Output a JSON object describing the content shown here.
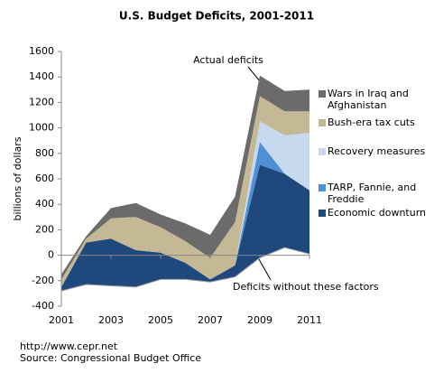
{
  "chart_data": {
    "type": "stacked-area",
    "title": "U.S. Budget Deficits, 2001-2011",
    "y_label": "billions of dollars",
    "annotation": "Actual deficits",
    "x": [
      2001,
      2002,
      2003,
      2004,
      2005,
      2006,
      2007,
      2008,
      2009,
      2010,
      2011
    ],
    "xlim": [
      2001,
      2011
    ],
    "xticks": [
      2001,
      2003,
      2005,
      2007,
      2009,
      2011
    ],
    "ylim": [
      -400,
      1600
    ],
    "yticks": [
      -400,
      -200,
      0,
      200,
      400,
      600,
      800,
      1000,
      1200,
      1400,
      1600
    ],
    "baseline": {
      "name": "Deficits without these factors",
      "color": "#a0a0a0",
      "values": [
        -280,
        -230,
        -240,
        -250,
        -190,
        -190,
        -210,
        -170,
        -20,
        60,
        10
      ]
    },
    "series": [
      {
        "name": "Economic downturn",
        "color": "#1f497d",
        "values": [
          30,
          330,
          370,
          290,
          210,
          130,
          20,
          90,
          730,
          580,
          500
        ]
      },
      {
        "name": "TARP, Fannie, and Freddie",
        "color": "#4f8fd6",
        "values": [
          0,
          0,
          0,
          0,
          0,
          0,
          0,
          0,
          180,
          0,
          0
        ]
      },
      {
        "name": "Recovery measures",
        "color": "#c6d9ef",
        "values": [
          0,
          0,
          0,
          0,
          0,
          0,
          0,
          0,
          160,
          300,
          450
        ]
      },
      {
        "name": "Bush-era tax cuts",
        "color": "#c4b994",
        "values": [
          60,
          30,
          160,
          260,
          200,
          170,
          170,
          340,
          200,
          190,
          170
        ]
      },
      {
        "name": "Wars in Iraq and Afghanistan",
        "color": "#6b6b6b",
        "values": [
          40,
          20,
          80,
          110,
          100,
          140,
          180,
          200,
          160,
          160,
          170
        ]
      }
    ]
  },
  "footer": {
    "url": "http://www.cepr.net",
    "source": "Source: Congressional Budget Office"
  }
}
